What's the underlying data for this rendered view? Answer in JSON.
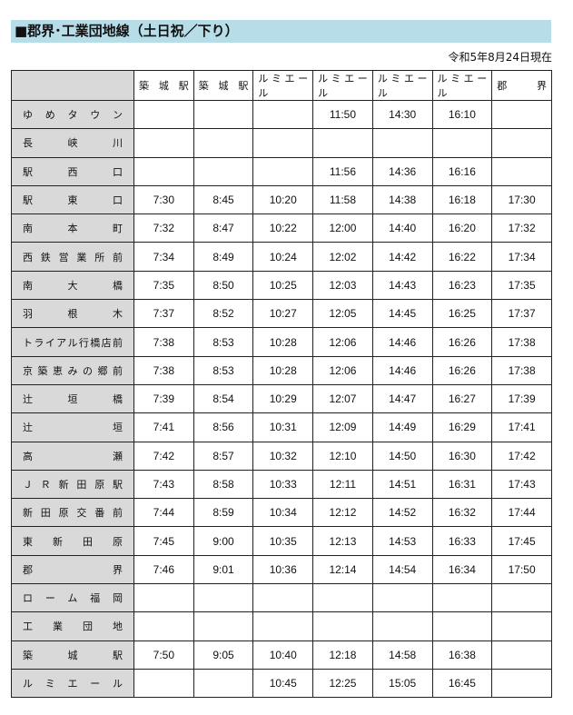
{
  "title": "■郡界･工業団地線（土日祝／下り）",
  "as_of": "令和5年8月24日現在",
  "timetable": {
    "headers": [
      "築 城 駅",
      "築 城 駅",
      "ルミエール",
      "ルミエール",
      "ルミエール",
      "ルミエール",
      "郡　　界"
    ],
    "rows": [
      {
        "stop": "ゆめタウン",
        "times": [
          "",
          "",
          "",
          "11:50",
          "14:30",
          "16:10",
          ""
        ]
      },
      {
        "stop": "長峡川",
        "times": [
          "",
          "",
          "",
          "",
          "",
          "",
          ""
        ]
      },
      {
        "stop": "駅西口",
        "times": [
          "",
          "",
          "",
          "11:56",
          "14:36",
          "16:16",
          ""
        ]
      },
      {
        "stop": "駅東口",
        "times": [
          "7:30",
          "8:45",
          "10:20",
          "11:58",
          "14:38",
          "16:18",
          "17:30"
        ]
      },
      {
        "stop": "南本町",
        "times": [
          "7:32",
          "8:47",
          "10:22",
          "12:00",
          "14:40",
          "16:20",
          "17:32"
        ]
      },
      {
        "stop": "西鉄営業所前",
        "times": [
          "7:34",
          "8:49",
          "10:24",
          "12:02",
          "14:42",
          "16:22",
          "17:34"
        ]
      },
      {
        "stop": "南大橋",
        "times": [
          "7:35",
          "8:50",
          "10:25",
          "12:03",
          "14:43",
          "16:23",
          "17:35"
        ]
      },
      {
        "stop": "羽根木",
        "times": [
          "7:37",
          "8:52",
          "10:27",
          "12:05",
          "14:45",
          "16:25",
          "17:37"
        ]
      },
      {
        "stop": "トライアル行橋店前",
        "times": [
          "7:38",
          "8:53",
          "10:28",
          "12:06",
          "14:46",
          "16:26",
          "17:38"
        ]
      },
      {
        "stop": "京築恵みの郷前",
        "times": [
          "7:38",
          "8:53",
          "10:28",
          "12:06",
          "14:46",
          "16:26",
          "17:38"
        ]
      },
      {
        "stop": "辻垣橋",
        "times": [
          "7:39",
          "8:54",
          "10:29",
          "12:07",
          "14:47",
          "16:27",
          "17:39"
        ]
      },
      {
        "stop": "辻垣",
        "times": [
          "7:41",
          "8:56",
          "10:31",
          "12:09",
          "14:49",
          "16:29",
          "17:41"
        ]
      },
      {
        "stop": "高瀬",
        "times": [
          "7:42",
          "8:57",
          "10:32",
          "12:10",
          "14:50",
          "16:30",
          "17:42"
        ]
      },
      {
        "stop": "ＪＲ新田原駅",
        "times": [
          "7:43",
          "8:58",
          "10:33",
          "12:11",
          "14:51",
          "16:31",
          "17:43"
        ]
      },
      {
        "stop": "新田原交番前",
        "times": [
          "7:44",
          "8:59",
          "10:34",
          "12:12",
          "14:52",
          "16:32",
          "17:44"
        ]
      },
      {
        "stop": "東新田原",
        "times": [
          "7:45",
          "9:00",
          "10:35",
          "12:13",
          "14:53",
          "16:33",
          "17:45"
        ]
      },
      {
        "stop": "郡界",
        "times": [
          "7:46",
          "9:01",
          "10:36",
          "12:14",
          "14:54",
          "16:34",
          "17:50"
        ]
      },
      {
        "stop": "ローム福岡",
        "times": [
          "",
          "",
          "",
          "",
          "",
          "",
          ""
        ]
      },
      {
        "stop": "工業団地",
        "times": [
          "",
          "",
          "",
          "",
          "",
          "",
          ""
        ]
      },
      {
        "stop": "築城駅",
        "times": [
          "7:50",
          "9:05",
          "10:40",
          "12:18",
          "14:58",
          "16:38",
          ""
        ]
      },
      {
        "stop": "ルミエール",
        "times": [
          "",
          "",
          "10:45",
          "12:25",
          "15:05",
          "16:45",
          ""
        ]
      }
    ]
  },
  "colors": {
    "title_bg": "#b7dde8",
    "stop_bg": "#d9d9d9"
  }
}
